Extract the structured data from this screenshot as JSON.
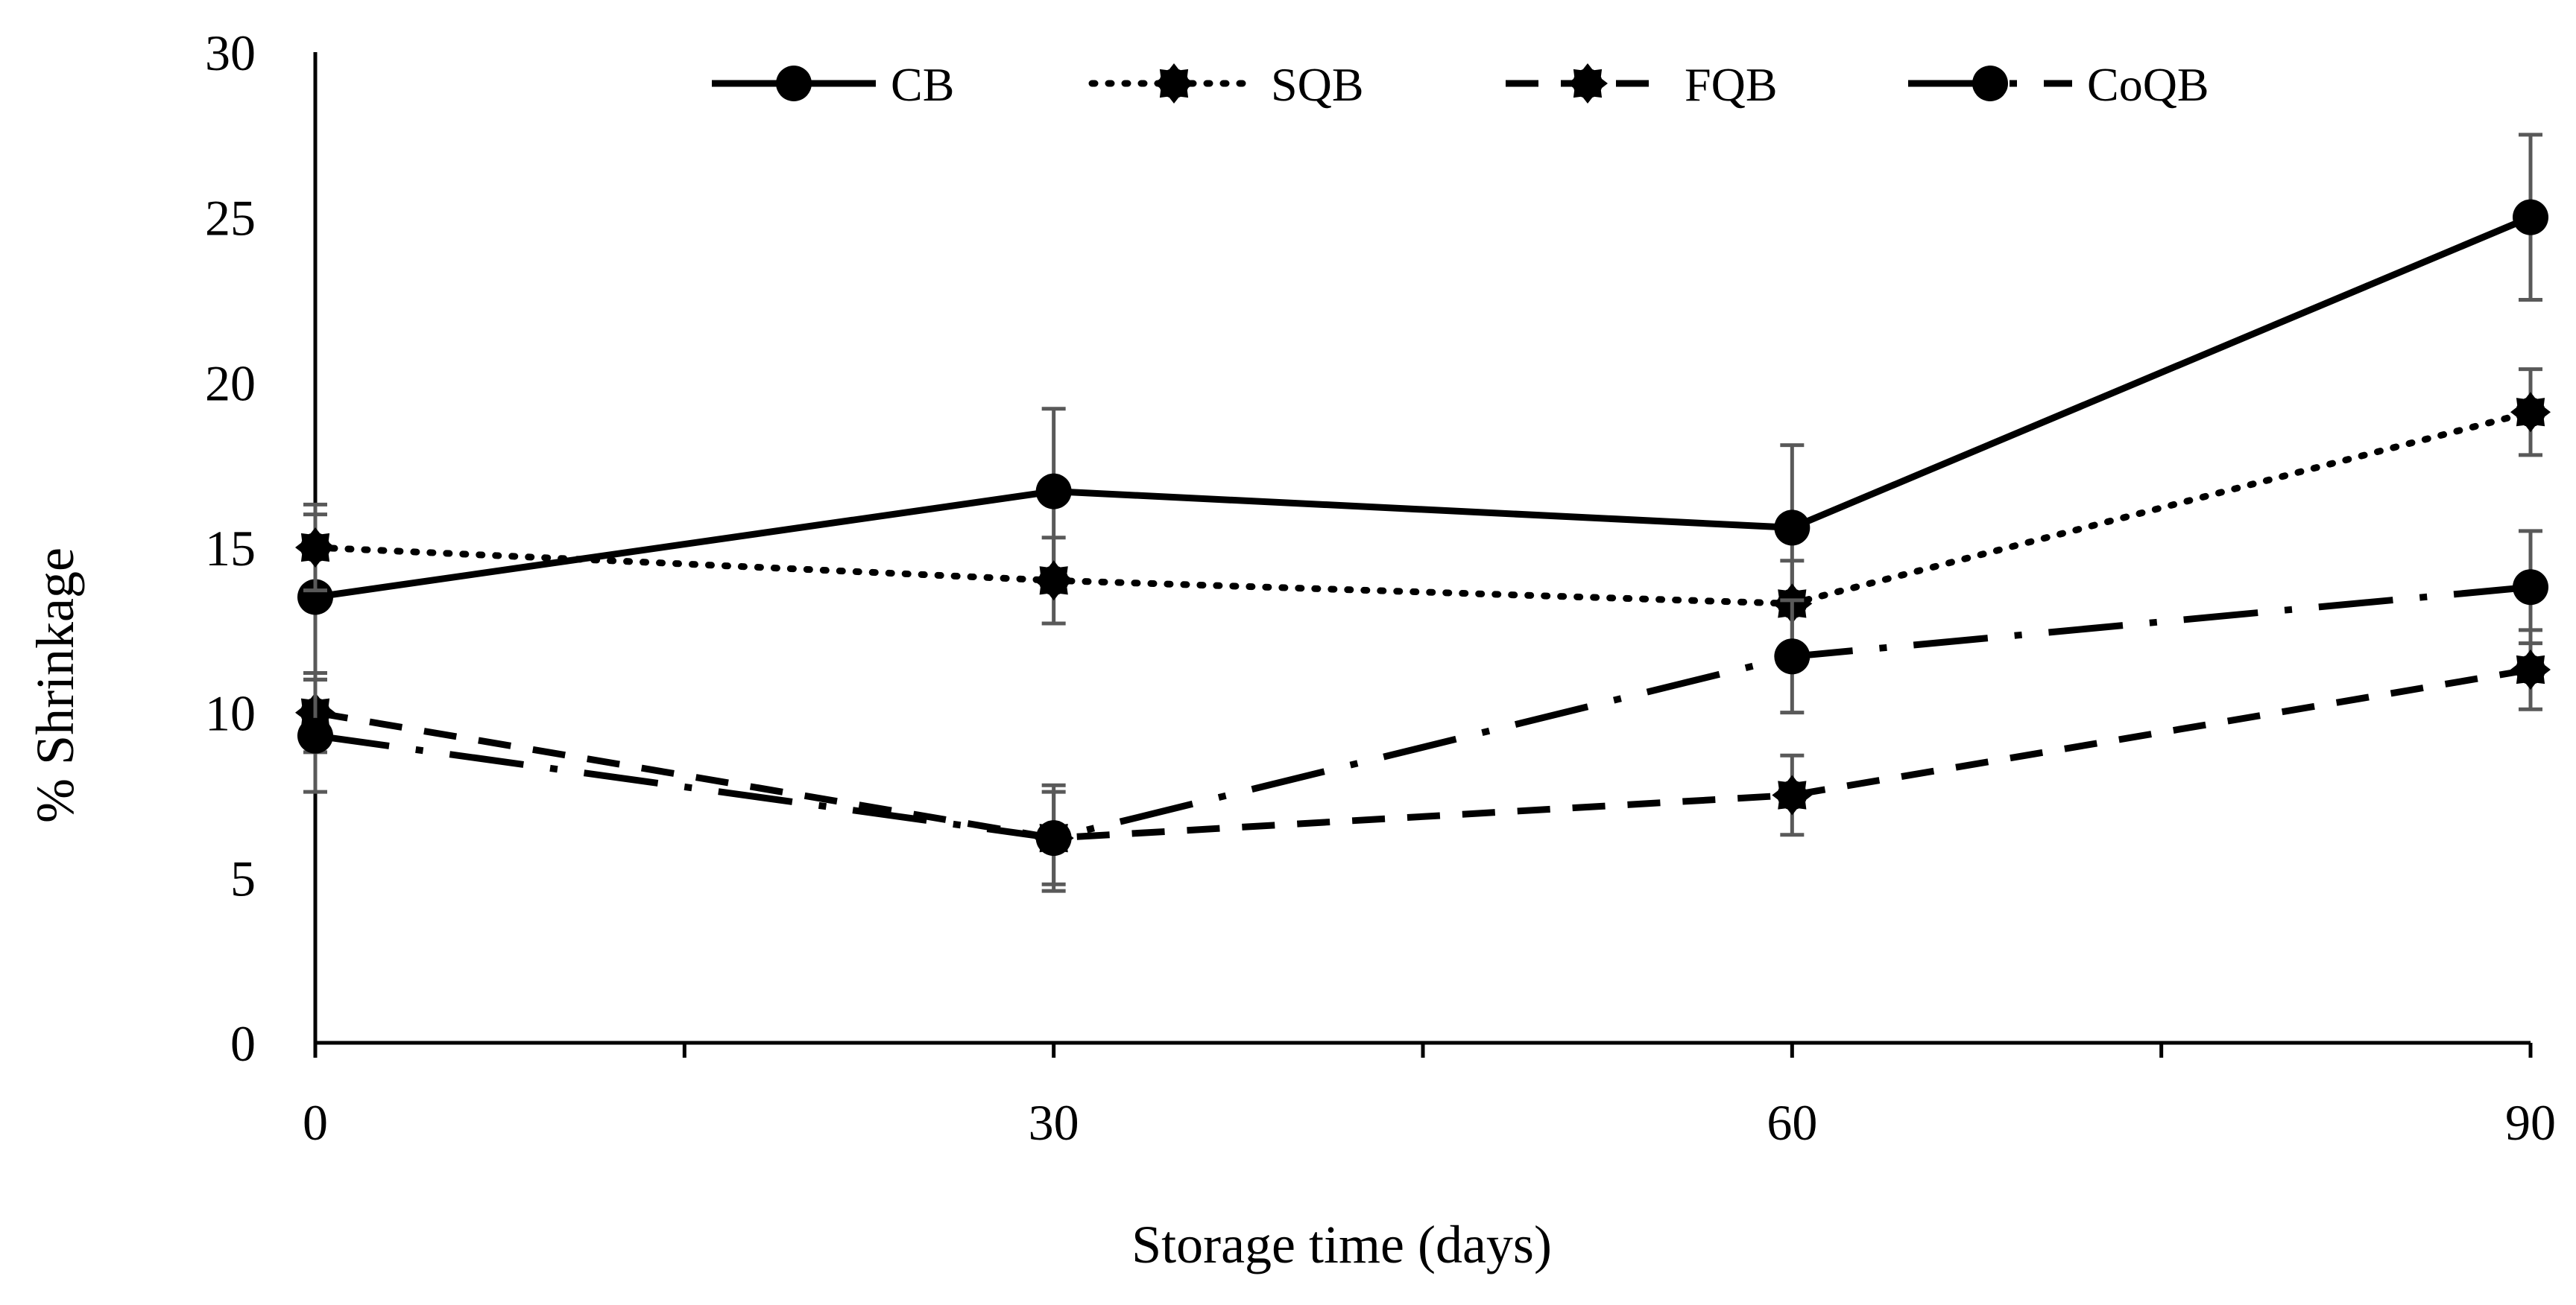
{
  "colors": {
    "line": "#000000",
    "marker": "#000000",
    "error_bar": "#595959",
    "background": "#ffffff"
  },
  "chart_data": {
    "type": "line",
    "title": "",
    "xlabel": "Storage time (days)",
    "ylabel": "% Shrinkage",
    "x": [
      0,
      30,
      60,
      90
    ],
    "x_tick_labels": [
      "0",
      "30",
      "60",
      "90"
    ],
    "xlim": [
      0,
      90
    ],
    "ylim": [
      0,
      30
    ],
    "y_ticks": [
      0,
      5,
      10,
      15,
      20,
      25,
      30
    ],
    "y_tick_labels": [
      "0",
      "5",
      "10",
      "15",
      "20",
      "25",
      "30"
    ],
    "grid": false,
    "legend_position": "top",
    "series": [
      {
        "name": "CB",
        "line_style": "solid",
        "marker": "circle",
        "values": [
          13.5,
          16.7,
          15.6,
          25.0
        ],
        "errors": [
          2.5,
          2.5,
          2.5,
          2.5
        ]
      },
      {
        "name": "SQB",
        "line_style": "dotted",
        "marker": "star-circle",
        "values": [
          15.0,
          14.0,
          13.3,
          19.1
        ],
        "errors": [
          1.3,
          1.3,
          1.3,
          1.3
        ]
      },
      {
        "name": "FQB",
        "line_style": "dashed",
        "marker": "star-circle",
        "values": [
          10.0,
          6.2,
          7.5,
          11.3
        ],
        "errors": [
          1.2,
          1.6,
          1.2,
          1.2
        ]
      },
      {
        "name": "CoQB",
        "line_style": "long-dash-dot",
        "marker": "circle",
        "values": [
          9.3,
          6.2,
          11.7,
          13.8
        ],
        "errors": [
          1.7,
          1.4,
          1.7,
          1.7
        ]
      }
    ]
  }
}
